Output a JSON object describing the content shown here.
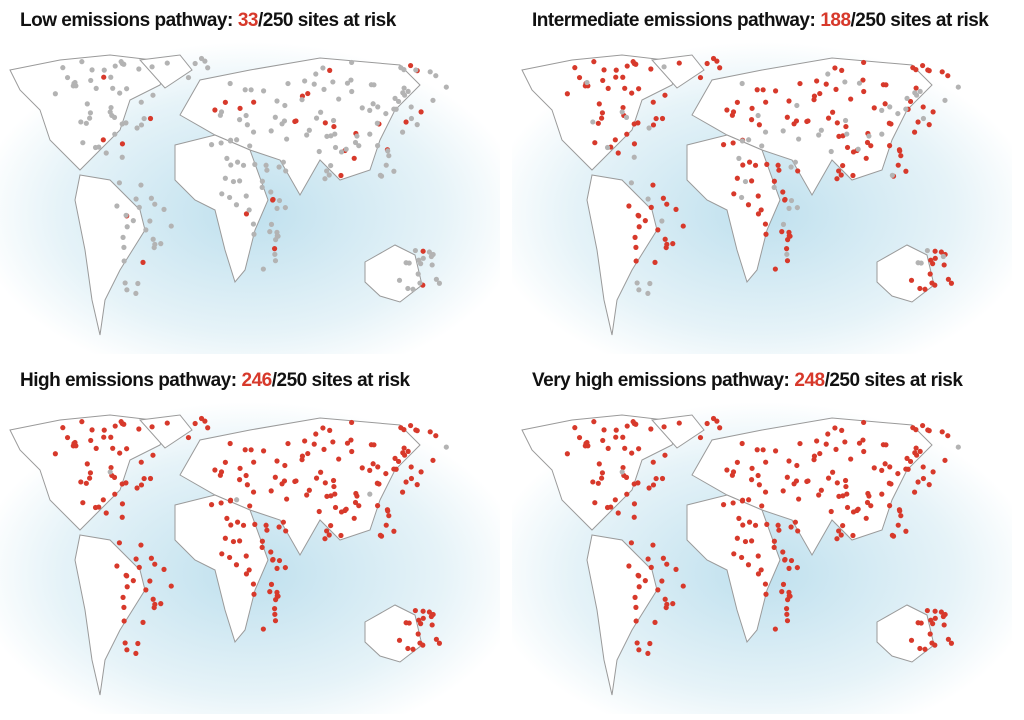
{
  "panels": [
    {
      "label": "Low emissions pathway:",
      "at_risk": 33,
      "total_label": "/250 sites at risk"
    },
    {
      "label": "Intermediate emissions pathway:",
      "at_risk": 188,
      "total_label": "/250 sites at risk"
    },
    {
      "label": "High emissions pathway:",
      "at_risk": 246,
      "total_label": "/250 sites at risk"
    },
    {
      "label": "Very high emissions pathway:",
      "at_risk": 248,
      "total_label": "/250 sites at risk"
    }
  ]
}
